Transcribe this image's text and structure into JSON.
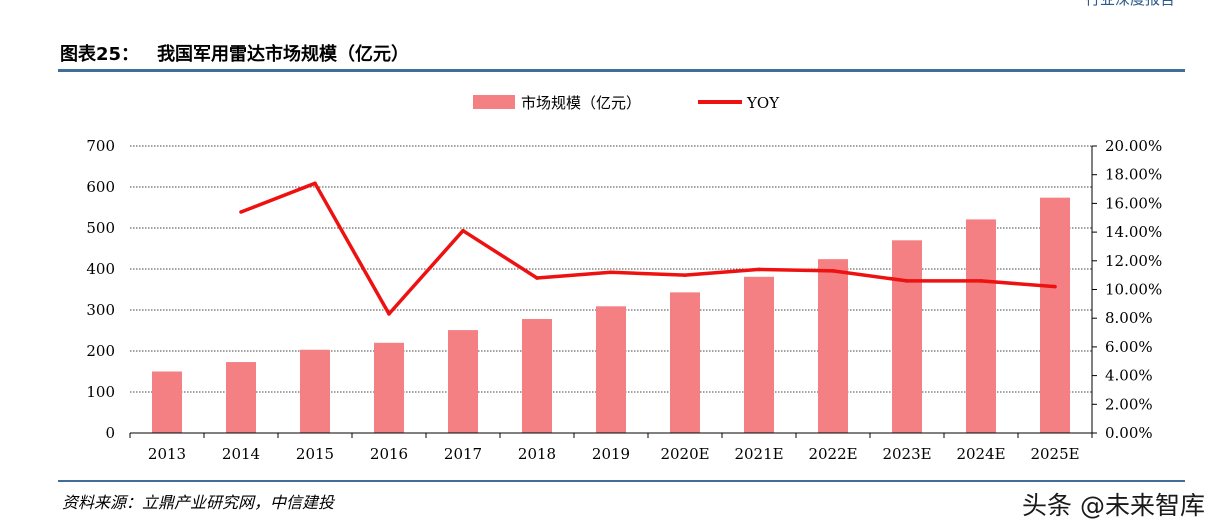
{
  "header": {
    "corner_text": "行业深度报告",
    "figure_label": "图表25：",
    "figure_title": "我国军用雷达市场规模（亿元）"
  },
  "footer": {
    "source": "资料来源：立鼎产业研究网，中信建投",
    "watermark": "头条 @未来智库"
  },
  "colors": {
    "bar": "#f48083",
    "line": "#ee1111",
    "rule": "#3f6e98",
    "grid": "#444444"
  },
  "chart_data": {
    "type": "bar",
    "categories": [
      "2013",
      "2014",
      "2015",
      "2016",
      "2017",
      "2018",
      "2019",
      "2020E",
      "2021E",
      "2022E",
      "2023E",
      "2024E",
      "2025E"
    ],
    "series": [
      {
        "name": "市场规模（亿元）",
        "type": "bar",
        "axis": "left",
        "values": [
          150,
          173,
          203,
          220,
          251,
          278,
          309,
          343,
          381,
          424,
          470,
          521,
          574
        ]
      },
      {
        "name": "YOY",
        "type": "line",
        "axis": "right",
        "values": [
          null,
          15.4,
          17.4,
          8.3,
          14.1,
          10.8,
          11.2,
          11.0,
          11.4,
          11.3,
          10.6,
          10.6,
          10.2
        ]
      }
    ],
    "left_axis": {
      "ylim": [
        0,
        700
      ],
      "ticks": [
        "0",
        "100",
        "200",
        "300",
        "400",
        "500",
        "600",
        "700"
      ]
    },
    "right_axis": {
      "ylim": [
        0,
        20
      ],
      "ticks": [
        "0.00%",
        "2.00%",
        "4.00%",
        "6.00%",
        "8.00%",
        "10.00%",
        "12.00%",
        "14.00%",
        "16.00%",
        "18.00%",
        "20.00%"
      ]
    },
    "grid": true,
    "legend_position": "top-center"
  }
}
